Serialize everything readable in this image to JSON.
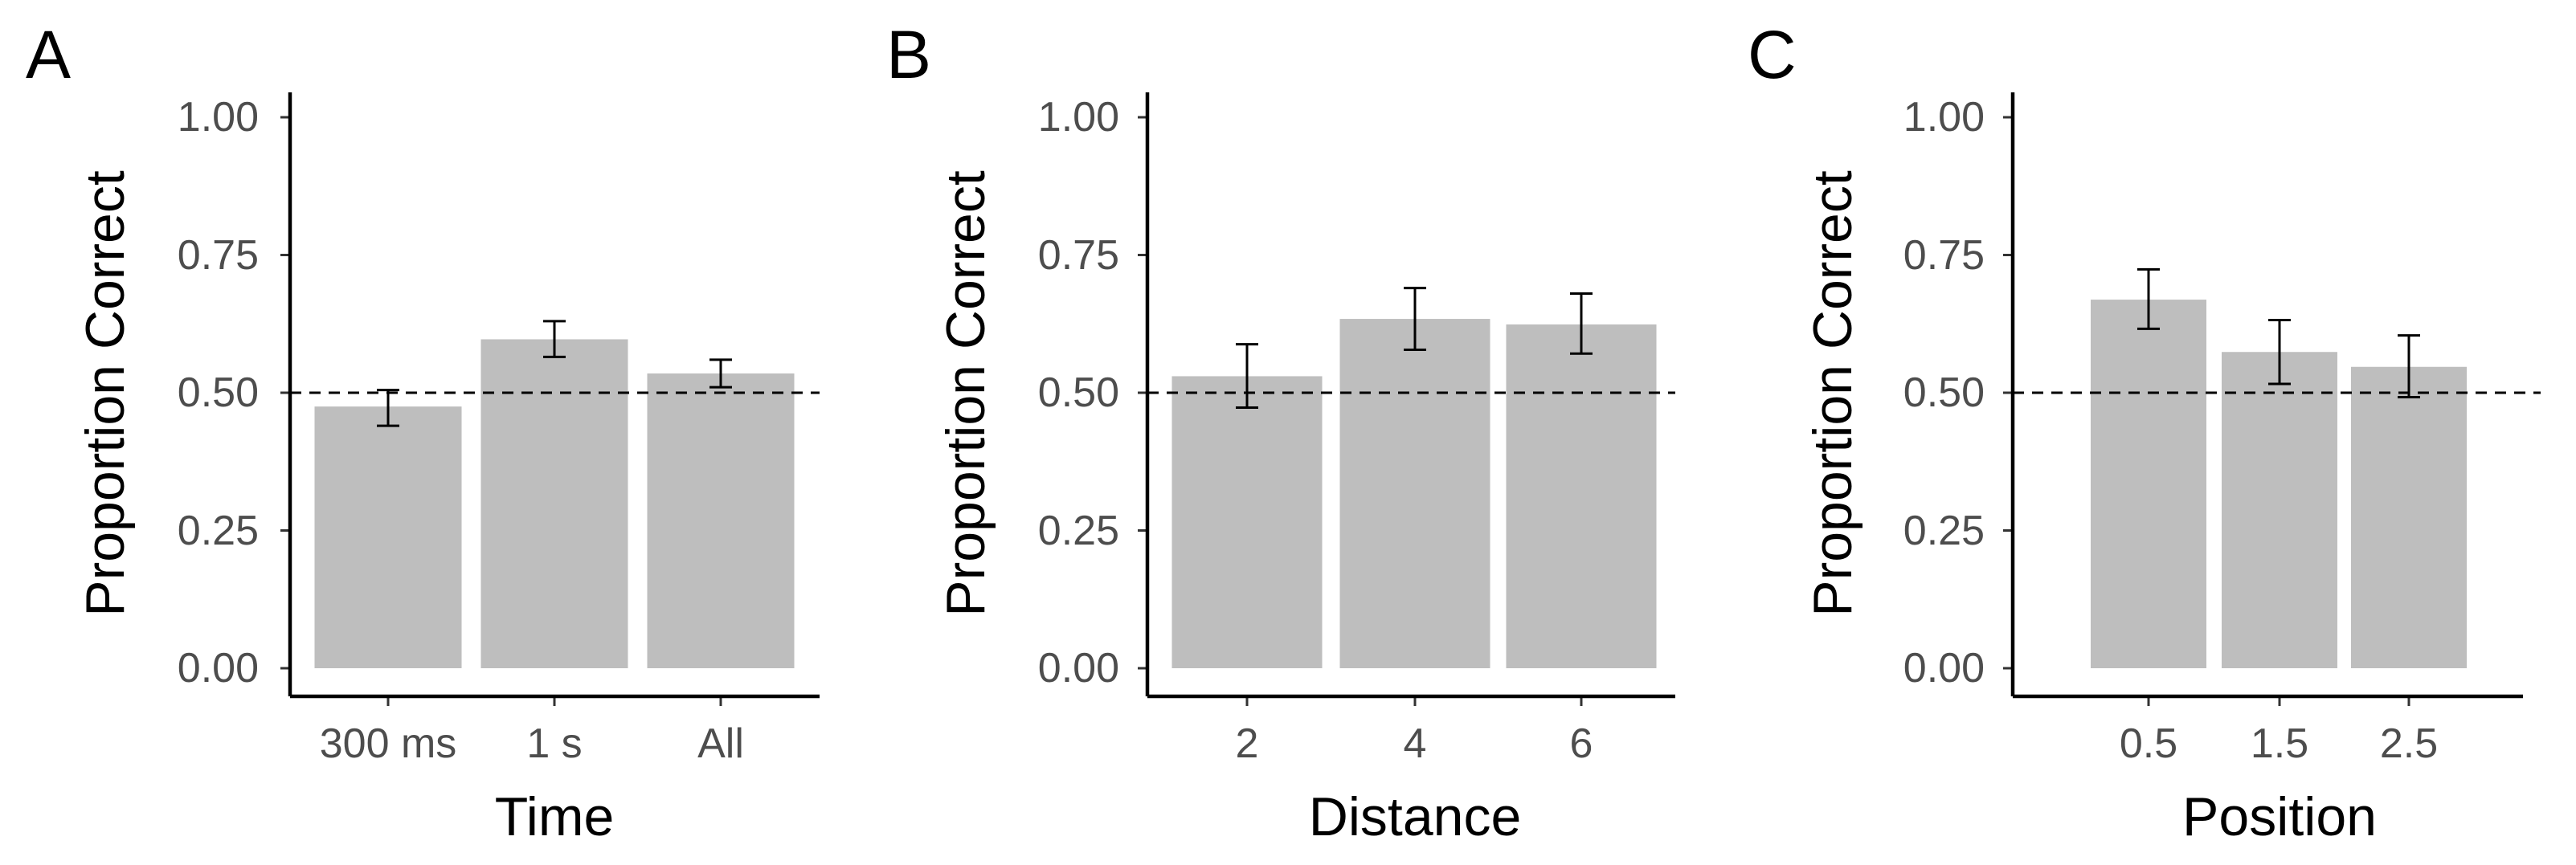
{
  "chart_data": [
    {
      "type": "bar",
      "panel_label": "A",
      "title": "",
      "xlabel": "Time",
      "ylabel": "Proportion Correct",
      "ylim": [
        0,
        1
      ],
      "yticks": [
        "0.00",
        "0.25",
        "0.50",
        "0.75",
        "1.00"
      ],
      "categories": [
        "300 ms",
        "1 s",
        "All"
      ],
      "values": [
        0.475,
        0.597,
        0.535
      ],
      "error_low": [
        0.44,
        0.565,
        0.51
      ],
      "error_high": [
        0.505,
        0.63,
        0.56
      ],
      "reference_line": 0.5,
      "grid": false,
      "legend": "none"
    },
    {
      "type": "bar",
      "panel_label": "B",
      "title": "",
      "xlabel": "Distance",
      "ylabel": "Proportion Correct",
      "ylim": [
        0,
        1
      ],
      "yticks": [
        "0.00",
        "0.25",
        "0.50",
        "0.75",
        "1.00"
      ],
      "categories": [
        "2",
        "4",
        "6"
      ],
      "values": [
        0.53,
        0.634,
        0.624
      ],
      "error_low": [
        0.473,
        0.578,
        0.571
      ],
      "error_high": [
        0.588,
        0.69,
        0.68
      ],
      "reference_line": 0.5,
      "grid": false,
      "legend": "none"
    },
    {
      "type": "bar",
      "panel_label": "C",
      "title": "",
      "xlabel": "Position",
      "ylabel": "Proportion Correct",
      "ylim": [
        0,
        1
      ],
      "yticks": [
        "0.00",
        "0.25",
        "0.50",
        "0.75",
        "1.00"
      ],
      "categories": [
        "0.5",
        "1.5",
        "2.5"
      ],
      "values": [
        0.669,
        0.574,
        0.547
      ],
      "error_low": [
        0.616,
        0.516,
        0.492
      ],
      "error_high": [
        0.724,
        0.632,
        0.604
      ],
      "reference_line": 0.5,
      "grid": false,
      "legend": "none"
    }
  ]
}
